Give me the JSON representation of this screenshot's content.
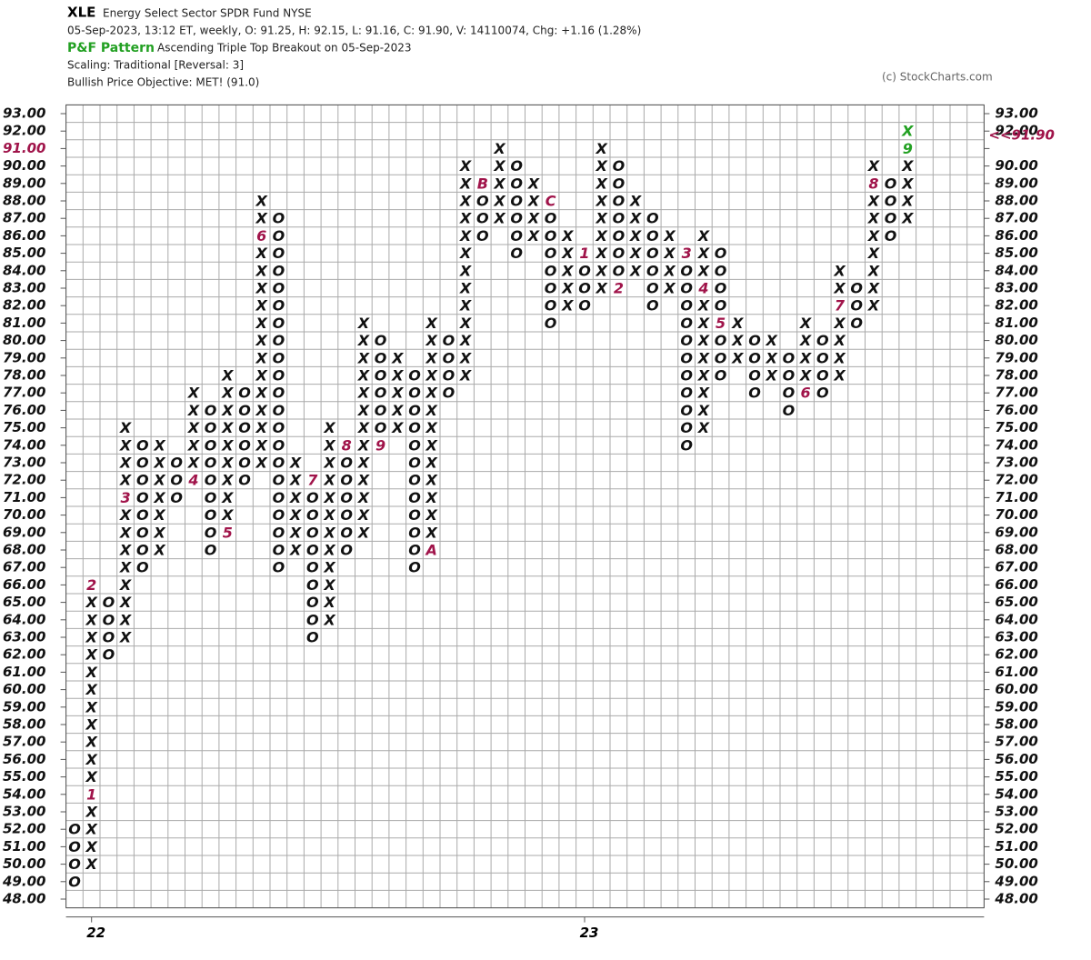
{
  "header": {
    "symbol": "XLE",
    "name": "Energy Select Sector SPDR Fund  NYSE",
    "quote": "05-Sep-2023, 13:12 ET, weekly, O: 91.25, H: 92.15, L: 91.16, C: 91.90, V: 14110074, Chg: +1.16 (1.28%)",
    "pattern_label": "P&F Pattern",
    "pattern": "Ascending Triple Top Breakout on 05-Sep-2023",
    "scaling": "Scaling: Traditional [Reversal: 3]",
    "objective": "Bullish Price Objective: MET! (91.0)",
    "copyright": "(c) StockCharts.com"
  },
  "chart_data": {
    "type": "pnf",
    "ylim": [
      48,
      93
    ],
    "yticks": [
      {
        "value": 93,
        "label": "93.00"
      },
      {
        "value": 92,
        "label": "92.00"
      },
      {
        "value": 91,
        "label": "91.00"
      },
      {
        "value": 90,
        "label": "90.00"
      },
      {
        "value": 89,
        "label": "89.00"
      },
      {
        "value": 88,
        "label": "88.00"
      },
      {
        "value": 87,
        "label": "87.00"
      },
      {
        "value": 86,
        "label": "86.00"
      },
      {
        "value": 85,
        "label": "85.00"
      },
      {
        "value": 84,
        "label": "84.00"
      },
      {
        "value": 83,
        "label": "83.00"
      },
      {
        "value": 82,
        "label": "82.00"
      },
      {
        "value": 81,
        "label": "81.00"
      },
      {
        "value": 80,
        "label": "80.00"
      },
      {
        "value": 79,
        "label": "79.00"
      },
      {
        "value": 78,
        "label": "78.00"
      },
      {
        "value": 77,
        "label": "77.00"
      },
      {
        "value": 76,
        "label": "76.00"
      },
      {
        "value": 75,
        "label": "75.00"
      },
      {
        "value": 74,
        "label": "74.00"
      },
      {
        "value": 73,
        "label": "73.00"
      },
      {
        "value": 72,
        "label": "72.00"
      },
      {
        "value": 71,
        "label": "71.00"
      },
      {
        "value": 70,
        "label": "70.00"
      },
      {
        "value": 69,
        "label": "69.00"
      },
      {
        "value": 68,
        "label": "68.00"
      },
      {
        "value": 67,
        "label": "67.00"
      },
      {
        "value": 66,
        "label": "66.00"
      },
      {
        "value": 65,
        "label": "65.00"
      },
      {
        "value": 64,
        "label": "64.00"
      },
      {
        "value": 63,
        "label": "63.00"
      },
      {
        "value": 62,
        "label": "62.00"
      },
      {
        "value": 61,
        "label": "61.00"
      },
      {
        "value": 60,
        "label": "60.00"
      },
      {
        "value": 59,
        "label": "59.00"
      },
      {
        "value": 58,
        "label": "58.00"
      },
      {
        "value": 57,
        "label": "57.00"
      },
      {
        "value": 56,
        "label": "56.00"
      },
      {
        "value": 55,
        "label": "55.00"
      },
      {
        "value": 54,
        "label": "54.00"
      },
      {
        "value": 53,
        "label": "53.00"
      },
      {
        "value": 52,
        "label": "52.00"
      },
      {
        "value": 51,
        "label": "51.00"
      },
      {
        "value": 50,
        "label": "50.00"
      },
      {
        "value": 49,
        "label": "49.00"
      },
      {
        "value": 48,
        "label": "48.00"
      }
    ],
    "last_box": 91,
    "last_price": {
      "value": 91.9,
      "label": "<<91.90"
    },
    "xlabels": [
      {
        "column": 1,
        "label": "22"
      },
      {
        "column": 30,
        "label": "23"
      }
    ],
    "symbol_color": "#111111",
    "marker_color": "#a0144a",
    "current_color": "#22a022",
    "grid": true,
    "columns": [
      {
        "type": "O",
        "low": 49,
        "high": 52
      },
      {
        "type": "X",
        "low": 50,
        "high": 66,
        "markers": [
          {
            "price": 54,
            "label": "1"
          },
          {
            "price": 66,
            "label": "2"
          }
        ]
      },
      {
        "type": "O",
        "low": 62,
        "high": 65
      },
      {
        "type": "X",
        "low": 63,
        "high": 75,
        "markers": [
          {
            "price": 71,
            "label": "3"
          }
        ]
      },
      {
        "type": "O",
        "low": 67,
        "high": 74
      },
      {
        "type": "X",
        "low": 68,
        "high": 74
      },
      {
        "type": "O",
        "low": 71,
        "high": 73
      },
      {
        "type": "X",
        "low": 72,
        "high": 77,
        "markers": [
          {
            "price": 72,
            "label": "4"
          }
        ]
      },
      {
        "type": "O",
        "low": 68,
        "high": 76
      },
      {
        "type": "X",
        "low": 69,
        "high": 78,
        "markers": [
          {
            "price": 69,
            "label": "5"
          }
        ]
      },
      {
        "type": "O",
        "low": 72,
        "high": 77
      },
      {
        "type": "X",
        "low": 73,
        "high": 88,
        "markers": [
          {
            "price": 86,
            "label": "6"
          }
        ]
      },
      {
        "type": "O",
        "low": 67,
        "high": 87
      },
      {
        "type": "X",
        "low": 68,
        "high": 73
      },
      {
        "type": "O",
        "low": 63,
        "high": 72,
        "markers": [
          {
            "price": 72,
            "label": "7"
          }
        ]
      },
      {
        "type": "X",
        "low": 64,
        "high": 75
      },
      {
        "type": "O",
        "low": 68,
        "high": 74,
        "markers": [
          {
            "price": 74,
            "label": "8"
          }
        ]
      },
      {
        "type": "X",
        "low": 69,
        "high": 81
      },
      {
        "type": "O",
        "low": 74,
        "high": 80,
        "markers": [
          {
            "price": 74,
            "label": "9"
          }
        ]
      },
      {
        "type": "X",
        "low": 75,
        "high": 79
      },
      {
        "type": "O",
        "low": 67,
        "high": 78
      },
      {
        "type": "X",
        "low": 68,
        "high": 81,
        "markers": [
          {
            "price": 68,
            "label": "A"
          }
        ]
      },
      {
        "type": "O",
        "low": 77,
        "high": 80
      },
      {
        "type": "X",
        "low": 78,
        "high": 90
      },
      {
        "type": "O",
        "low": 86,
        "high": 89,
        "markers": [
          {
            "price": 89,
            "label": "B"
          }
        ]
      },
      {
        "type": "X",
        "low": 87,
        "high": 91
      },
      {
        "type": "O",
        "low": 85,
        "high": 90
      },
      {
        "type": "X",
        "low": 86,
        "high": 89
      },
      {
        "type": "O",
        "low": 81,
        "high": 88,
        "markers": [
          {
            "price": 88,
            "label": "C"
          }
        ]
      },
      {
        "type": "X",
        "low": 82,
        "high": 86
      },
      {
        "type": "O",
        "low": 82,
        "high": 85,
        "markers": [
          {
            "price": 85,
            "label": "1"
          }
        ]
      },
      {
        "type": "X",
        "low": 83,
        "high": 91
      },
      {
        "type": "O",
        "low": 83,
        "high": 90,
        "markers": [
          {
            "price": 83,
            "label": "2"
          }
        ]
      },
      {
        "type": "X",
        "low": 84,
        "high": 88
      },
      {
        "type": "O",
        "low": 82,
        "high": 87
      },
      {
        "type": "X",
        "low": 83,
        "high": 86
      },
      {
        "type": "O",
        "low": 74,
        "high": 85,
        "markers": [
          {
            "price": 85,
            "label": "3"
          }
        ]
      },
      {
        "type": "X",
        "low": 75,
        "high": 86,
        "markers": [
          {
            "price": 83,
            "label": "4"
          }
        ]
      },
      {
        "type": "O",
        "low": 78,
        "high": 85,
        "markers": [
          {
            "price": 81,
            "label": "5"
          }
        ]
      },
      {
        "type": "X",
        "low": 79,
        "high": 81
      },
      {
        "type": "O",
        "low": 77,
        "high": 80
      },
      {
        "type": "X",
        "low": 78,
        "high": 80
      },
      {
        "type": "O",
        "low": 76,
        "high": 79
      },
      {
        "type": "X",
        "low": 77,
        "high": 81,
        "markers": [
          {
            "price": 77,
            "label": "6"
          }
        ]
      },
      {
        "type": "O",
        "low": 77,
        "high": 80
      },
      {
        "type": "X",
        "low": 78,
        "high": 84,
        "markers": [
          {
            "price": 82,
            "label": "7"
          }
        ]
      },
      {
        "type": "O",
        "low": 81,
        "high": 83
      },
      {
        "type": "X",
        "low": 82,
        "high": 90,
        "markers": [
          {
            "price": 89,
            "label": "8"
          }
        ]
      },
      {
        "type": "O",
        "low": 86,
        "high": 89
      },
      {
        "type": "X",
        "low": 87,
        "high": 92,
        "current_low": 91,
        "markers": [
          {
            "price": 91,
            "label": "9"
          }
        ]
      }
    ]
  }
}
